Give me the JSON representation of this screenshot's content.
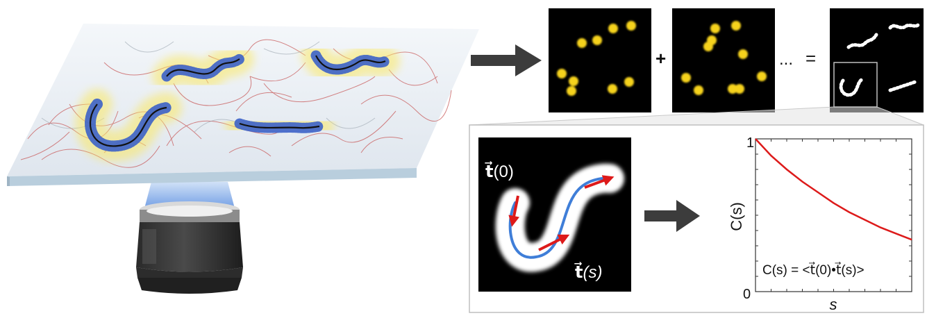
{
  "operators": {
    "plus": "+",
    "ellipsis": "...",
    "equals": "="
  },
  "vectors": {
    "t0": {
      "arrow": "t⃗",
      "arg": "(0)"
    },
    "ts": {
      "arrow": "t⃗",
      "arg": "(s)"
    }
  },
  "chart_data": {
    "type": "line",
    "ylabel": "C(s)",
    "xlabel": "s",
    "y_ticks": [
      "1",
      "0"
    ],
    "formula": "C(s) = <t⃗(0)•t⃗(s)>",
    "ylim": [
      0,
      1
    ],
    "xlim": [
      0,
      1
    ],
    "series": [
      {
        "color": "#dd1a1a",
        "x": [
          0,
          0.1,
          0.2,
          0.3,
          0.4,
          0.5,
          0.6,
          0.7,
          0.8,
          0.9,
          1.0
        ],
        "y": [
          1.0,
          0.89,
          0.8,
          0.72,
          0.65,
          0.58,
          0.52,
          0.47,
          0.42,
          0.38,
          0.34
        ]
      }
    ]
  },
  "colors": {
    "fluorescence": "#f3e34a",
    "polymer_chain": "#111111",
    "side_chains": "#3c62c8",
    "network_fibers": "#c85a5a",
    "tangent_arrows": "#dd1a1a",
    "backbone_fit": "#3f7ed8",
    "arrow_gray": "#3c3c3c"
  }
}
